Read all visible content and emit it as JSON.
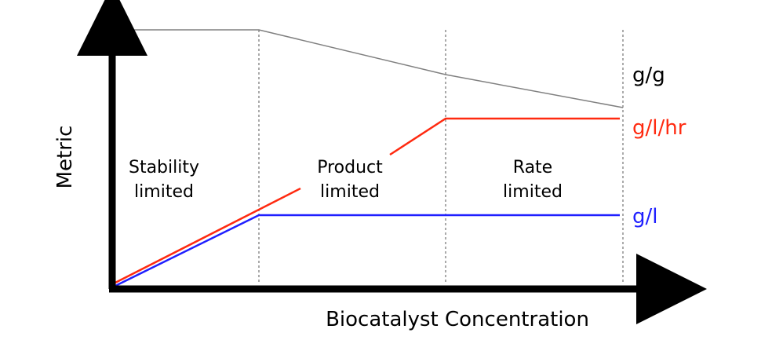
{
  "axes": {
    "x_label": "Biocatalyst Concentration",
    "y_label": "Metric"
  },
  "regions": [
    {
      "line1": "Stability",
      "line2": "limited"
    },
    {
      "line1": "Product",
      "line2": "limited"
    },
    {
      "line1": "Rate",
      "line2": "limited"
    }
  ],
  "series": [
    {
      "name": "g/g",
      "color": "#000000",
      "line_color": "#808080"
    },
    {
      "name": "g/l/hr",
      "color": "#ff2a10"
    },
    {
      "name": "g/l",
      "color": "#1f1fff"
    }
  ]
}
